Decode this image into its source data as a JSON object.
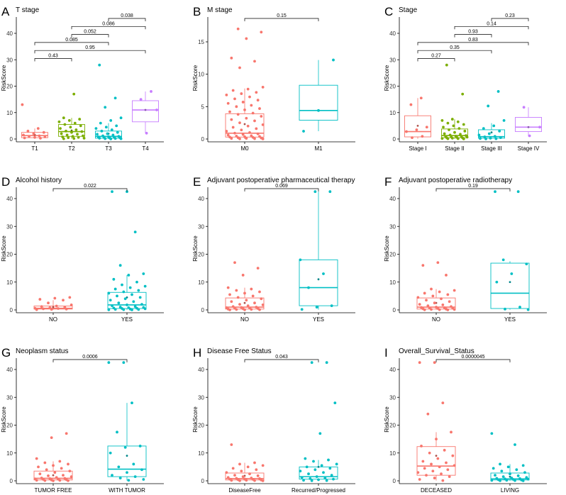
{
  "chart_data": [
    {
      "type": "box",
      "letter": "A",
      "title": "T stage",
      "ylabel": "RiskScore",
      "ylim": [
        0,
        45
      ],
      "yticks": [
        0,
        10,
        20,
        30,
        40
      ],
      "categories": [
        "T1",
        "T2",
        "T3",
        "T4"
      ],
      "colors": [
        "#F8766D",
        "#7CAE00",
        "#00BFC4",
        "#C77CFF"
      ],
      "boxes": [
        {
          "q1": 0.5,
          "median": 1.3,
          "q3": 2.5,
          "whisker_low": 0.1,
          "whisker_high": 4.0,
          "mean": 1.6,
          "points": [
            13,
            4,
            3,
            2.5,
            2,
            1.5,
            1.2,
            1,
            0.8,
            0.6,
            0.4,
            0.3
          ]
        },
        {
          "q1": 1.0,
          "median": 2.8,
          "q3": 5.5,
          "whisker_low": 0.1,
          "whisker_high": 8.0,
          "mean": 3.2,
          "points": [
            17,
            8,
            7.5,
            7,
            6.5,
            6,
            5.5,
            5,
            4.5,
            4,
            3.5,
            3,
            2.8,
            2.5,
            2,
            1.8,
            1.5,
            1.2,
            1,
            0.8,
            0.6,
            0.5,
            0.3,
            0.2,
            0.1
          ]
        },
        {
          "q1": 0.3,
          "median": 1.0,
          "q3": 3.0,
          "whisker_low": 0.05,
          "whisker_high": 6.0,
          "mean": 2.0,
          "points": [
            28,
            15.5,
            12,
            8,
            7,
            6,
            5,
            4.5,
            4,
            3.5,
            3,
            2.5,
            2,
            1.8,
            1.5,
            1.2,
            1,
            0.9,
            0.8,
            0.7,
            0.6,
            0.5,
            0.4,
            0.3,
            0.2,
            0.15,
            0.1,
            0.05
          ]
        },
        {
          "q1": 6.5,
          "median": 11.0,
          "q3": 14.5,
          "whisker_low": 2.2,
          "whisker_high": 18.0,
          "mean": 11.0,
          "points": [
            18,
            15,
            11,
            2.2
          ]
        }
      ],
      "comparisons": [
        {
          "a": 2,
          "b": 3,
          "p": "0.038"
        },
        {
          "a": 1,
          "b": 3,
          "p": "0.086"
        },
        {
          "a": 1,
          "b": 2,
          "p": "0.052"
        },
        {
          "a": 0,
          "b": 2,
          "p": "0.085"
        },
        {
          "a": 0,
          "b": 3,
          "p": "0.95"
        },
        {
          "a": 0,
          "b": 1,
          "p": "0.43"
        }
      ]
    },
    {
      "type": "box",
      "letter": "B",
      "title": "M stage",
      "ylabel": "RiskScore",
      "ylim": [
        0,
        18.5
      ],
      "yticks": [
        0,
        5,
        10,
        15
      ],
      "categories": [
        "M0",
        "M1"
      ],
      "colors": [
        "#F8766D",
        "#00BFC4"
      ],
      "boxes": [
        {
          "q1": 0.3,
          "median": 0.9,
          "q3": 3.9,
          "whisker_low": 0.02,
          "whisker_high": 7.8,
          "mean": 2.3,
          "points": [
            17,
            16.5,
            15.5,
            12.5,
            12,
            11,
            8,
            7.7,
            7.5,
            7.2,
            7,
            6.8,
            6.5,
            6.2,
            6,
            5.7,
            5.5,
            5.2,
            5,
            4.7,
            4.5,
            4.2,
            4,
            3.8,
            3.5,
            3.2,
            3,
            2.8,
            2.5,
            2.2,
            2,
            1.8,
            1.6,
            1.4,
            1.2,
            1,
            0.9,
            0.8,
            0.7,
            0.6,
            0.5,
            0.45,
            0.4,
            0.35,
            0.3,
            0.25,
            0.2,
            0.15,
            0.1,
            0.08,
            0.05,
            0.03,
            0.02
          ]
        },
        {
          "q1": 2.9,
          "median": 4.4,
          "q3": 8.3,
          "whisker_low": 1.2,
          "whisker_high": 12.2,
          "mean": 4.4,
          "points": [
            12.2,
            4.4,
            1.2
          ]
        }
      ],
      "comparisons": [
        {
          "a": 0,
          "b": 1,
          "p": "0.15"
        }
      ]
    },
    {
      "type": "box",
      "letter": "C",
      "title": "Stage",
      "ylabel": "RiskScore",
      "ylim": [
        0,
        45
      ],
      "yticks": [
        0,
        10,
        20,
        30,
        40
      ],
      "categories": [
        "Stage I",
        "Stage II",
        "Stage III",
        "Stage IV"
      ],
      "colors": [
        "#F8766D",
        "#7CAE00",
        "#00BFC4",
        "#C77CFF"
      ],
      "boxes": [
        {
          "q1": 0.8,
          "median": 2.8,
          "q3": 8.8,
          "whisker_low": 0.1,
          "whisker_high": 15.5,
          "mean": 5.0,
          "points": [
            15.5,
            13,
            4.5,
            3.5,
            2.8,
            1,
            0.5
          ]
        },
        {
          "q1": 0.5,
          "median": 1.3,
          "q3": 3.8,
          "whisker_low": 0.05,
          "whisker_high": 7.5,
          "mean": 2.5,
          "points": [
            28,
            17,
            7.5,
            7,
            6.5,
            6,
            5.5,
            5,
            4.5,
            4,
            3.5,
            3,
            2.5,
            2,
            1.8,
            1.5,
            1.3,
            1.1,
            1,
            0.9,
            0.8,
            0.7,
            0.6,
            0.5,
            0.4,
            0.3,
            0.2,
            0.15,
            0.1,
            0.05
          ]
        },
        {
          "q1": 0.3,
          "median": 0.9,
          "q3": 3.5,
          "whisker_low": 0.05,
          "whisker_high": 6.0,
          "mean": 2.5,
          "points": [
            18,
            12.5,
            7,
            5,
            4,
            3,
            2,
            1.5,
            1,
            0.8,
            0.5,
            0.3,
            0.2,
            0.1,
            0.05
          ]
        },
        {
          "q1": 2.8,
          "median": 4.5,
          "q3": 8.2,
          "whisker_low": 1.0,
          "whisker_high": 12.0,
          "mean": 4.5,
          "points": [
            12,
            4.5,
            1.2
          ]
        }
      ],
      "comparisons": [
        {
          "a": 2,
          "b": 3,
          "p": "0.23"
        },
        {
          "a": 1,
          "b": 3,
          "p": "0.14"
        },
        {
          "a": 1,
          "b": 2,
          "p": "0.93"
        },
        {
          "a": 0,
          "b": 3,
          "p": "0.83"
        },
        {
          "a": 0,
          "b": 2,
          "p": "0.35"
        },
        {
          "a": 0,
          "b": 1,
          "p": "0.27"
        }
      ]
    },
    {
      "type": "box",
      "letter": "D",
      "title": "Alcohol history",
      "ylabel": "RiskScore",
      "ylim": [
        0,
        45
      ],
      "yticks": [
        0,
        10,
        20,
        30,
        40
      ],
      "categories": [
        "NO",
        "YES"
      ],
      "colors": [
        "#F8766D",
        "#00BFC4"
      ],
      "boxes": [
        {
          "q1": 0.3,
          "median": 0.6,
          "q3": 1.4,
          "whisker_low": 0.05,
          "whisker_high": 3.5,
          "mean": 1.0,
          "points": [
            4.5,
            4.2,
            3.8,
            3.5,
            2.5,
            1.8,
            1.4,
            1.2,
            1,
            0.8,
            0.6,
            0.5,
            0.4,
            0.3,
            0.2,
            0.1
          ]
        },
        {
          "q1": 0.5,
          "median": 1.8,
          "q3": 6.3,
          "whisker_low": 0.02,
          "whisker_high": 12.5,
          "mean": 4.5,
          "points": [
            42.5,
            42.5,
            28,
            16,
            13,
            12.5,
            11,
            10,
            9,
            8.5,
            8,
            7.5,
            7,
            6.5,
            6,
            5.5,
            5,
            4.5,
            4,
            3.5,
            3,
            2.5,
            2,
            1.8,
            1.5,
            1.2,
            1,
            0.9,
            0.8,
            0.7,
            0.6,
            0.5,
            0.4,
            0.3,
            0.2,
            0.15,
            0.1,
            0.05,
            0.02
          ]
        }
      ],
      "comparisons": [
        {
          "a": 0,
          "b": 1,
          "p": "0.022"
        }
      ]
    },
    {
      "type": "box",
      "letter": "E",
      "title": "Adjuvant postoperative pharmaceutical therapy",
      "ylabel": "RiskScore",
      "ylim": [
        0,
        45
      ],
      "yticks": [
        0,
        10,
        20,
        30,
        40
      ],
      "categories": [
        "NO",
        "YES"
      ],
      "colors": [
        "#F8766D",
        "#00BFC4"
      ],
      "boxes": [
        {
          "q1": 0.3,
          "median": 1.0,
          "q3": 4.3,
          "whisker_low": 0.02,
          "whisker_high": 8.0,
          "mean": 2.5,
          "points": [
            17,
            15,
            12.5,
            8,
            7.5,
            7,
            6.5,
            6,
            5.5,
            5,
            4.5,
            4,
            3.5,
            3,
            2.5,
            2,
            1.8,
            1.5,
            1.2,
            1,
            0.9,
            0.8,
            0.7,
            0.6,
            0.5,
            0.4,
            0.3,
            0.2,
            0.15,
            0.1,
            0.05,
            0.02
          ]
        },
        {
          "q1": 1.5,
          "median": 8.0,
          "q3": 18.0,
          "whisker_low": 0.1,
          "whisker_high": 42.5,
          "mean": 11.0,
          "points": [
            42.5,
            42.5,
            18,
            13,
            8,
            1.5,
            1,
            0.2
          ]
        }
      ],
      "comparisons": [
        {
          "a": 0,
          "b": 1,
          "p": "0.069"
        }
      ]
    },
    {
      "type": "box",
      "letter": "F",
      "title": "Adjuvant postoperative radiotherapy",
      "ylabel": "RiskScore",
      "ylim": [
        0,
        45
      ],
      "yticks": [
        0,
        10,
        20,
        30,
        40
      ],
      "categories": [
        "NO",
        "YES"
      ],
      "colors": [
        "#F8766D",
        "#00BFC4"
      ],
      "boxes": [
        {
          "q1": 0.3,
          "median": 1.0,
          "q3": 4.3,
          "whisker_low": 0.02,
          "whisker_high": 7.5,
          "mean": 2.5,
          "points": [
            17,
            16,
            12.5,
            7.5,
            7,
            6.5,
            6,
            5.5,
            5,
            4.5,
            4,
            3.5,
            3,
            2.5,
            2,
            1.8,
            1.5,
            1.2,
            1,
            0.9,
            0.8,
            0.7,
            0.6,
            0.5,
            0.4,
            0.3,
            0.2,
            0.15,
            0.1,
            0.05,
            0.02
          ]
        },
        {
          "q1": 0.5,
          "median": 6.0,
          "q3": 16.8,
          "whisker_low": 0.1,
          "whisker_high": 17.5,
          "mean": 10.0,
          "points": [
            42.5,
            42.5,
            18,
            16.5,
            13,
            10,
            1,
            0.3,
            0.1
          ]
        }
      ],
      "comparisons": [
        {
          "a": 0,
          "b": 1,
          "p": "0.19"
        }
      ]
    },
    {
      "type": "box",
      "letter": "G",
      "title": "Neoplasm status",
      "ylabel": "RiskScore",
      "ylim": [
        0,
        45
      ],
      "yticks": [
        0,
        10,
        20,
        30,
        40
      ],
      "categories": [
        "TUMOR FREE",
        "WITH TUMOR"
      ],
      "colors": [
        "#F8766D",
        "#00BFC4"
      ],
      "boxes": [
        {
          "q1": 0.3,
          "median": 0.9,
          "q3": 3.5,
          "whisker_low": 0.02,
          "whisker_high": 7.0,
          "mean": 2.0,
          "points": [
            17,
            15.5,
            8,
            7,
            6.5,
            6,
            5.5,
            5,
            4.5,
            4,
            3.5,
            3,
            2.5,
            2,
            1.8,
            1.5,
            1.2,
            1,
            0.9,
            0.8,
            0.7,
            0.6,
            0.5,
            0.4,
            0.3,
            0.2,
            0.15,
            0.1,
            0.05,
            0.02
          ]
        },
        {
          "q1": 1.5,
          "median": 4.2,
          "q3": 12.5,
          "whisker_low": 0.1,
          "whisker_high": 28.0,
          "mean": 9.0,
          "points": [
            42.5,
            42.5,
            28,
            17.5,
            12.5,
            12,
            10,
            6,
            5,
            4,
            3,
            2,
            1.5,
            1,
            0.5,
            0.2
          ]
        }
      ],
      "comparisons": [
        {
          "a": 0,
          "b": 1,
          "p": "0.0006"
        }
      ]
    },
    {
      "type": "box",
      "letter": "H",
      "title": "Disease Free Status",
      "ylabel": "RiskScore",
      "ylim": [
        0,
        45
      ],
      "yticks": [
        0,
        10,
        20,
        30,
        40
      ],
      "categories": [
        "DiseaseFree",
        "Recurred/Progressed"
      ],
      "colors": [
        "#F8766D",
        "#00BFC4"
      ],
      "boxes": [
        {
          "q1": 0.3,
          "median": 0.8,
          "q3": 2.8,
          "whisker_low": 0.02,
          "whisker_high": 6.5,
          "mean": 1.8,
          "points": [
            13,
            6.5,
            6,
            5.5,
            5,
            4.5,
            4,
            3.5,
            3,
            2.5,
            2,
            1.8,
            1.5,
            1.2,
            1,
            0.9,
            0.8,
            0.7,
            0.6,
            0.5,
            0.4,
            0.3,
            0.2,
            0.15,
            0.1,
            0.05,
            0.02
          ]
        },
        {
          "q1": 0.6,
          "median": 1.5,
          "q3": 5.0,
          "whisker_low": 0.05,
          "whisker_high": 7.5,
          "mean": 5.0,
          "points": [
            42.5,
            42.5,
            28,
            17,
            8,
            7.5,
            7,
            6,
            5.5,
            5,
            4.5,
            4,
            3.5,
            3,
            2.5,
            2,
            1.5,
            1.2,
            1,
            0.8,
            0.6,
            0.4,
            0.2,
            0.1,
            0.05
          ]
        }
      ],
      "comparisons": [
        {
          "a": 0,
          "b": 1,
          "p": "0.043"
        }
      ]
    },
    {
      "type": "box",
      "letter": "I",
      "title": "Overall_Survival_Status",
      "ylabel": "RiskScore",
      "ylim": [
        0,
        45
      ],
      "yticks": [
        0,
        10,
        20,
        30,
        40
      ],
      "categories": [
        "DECEASED",
        "LIVING"
      ],
      "colors": [
        "#F8766D",
        "#00BFC4"
      ],
      "boxes": [
        {
          "q1": 2.0,
          "median": 5.3,
          "q3": 12.3,
          "whisker_low": 0.1,
          "whisker_high": 17.5,
          "mean": 9.0,
          "points": [
            42.5,
            42.5,
            28,
            24,
            17.5,
            15,
            12.5,
            11,
            10,
            9,
            8,
            7,
            6.5,
            6,
            5.5,
            5,
            4.5,
            4,
            3.5,
            3,
            2.5,
            2,
            1.5,
            1,
            0.5,
            0.1
          ]
        },
        {
          "q1": 0.3,
          "median": 0.7,
          "q3": 2.8,
          "whisker_low": 0.02,
          "whisker_high": 6.0,
          "mean": 1.5,
          "points": [
            17,
            13,
            6,
            5.5,
            5,
            4.5,
            4,
            3.5,
            3,
            2.5,
            2,
            1.8,
            1.5,
            1.2,
            1,
            0.9,
            0.8,
            0.7,
            0.6,
            0.5,
            0.4,
            0.3,
            0.2,
            0.15,
            0.1,
            0.05,
            0.02
          ]
        }
      ],
      "comparisons": [
        {
          "a": 0,
          "b": 1,
          "p": "0.0000045"
        }
      ]
    }
  ]
}
